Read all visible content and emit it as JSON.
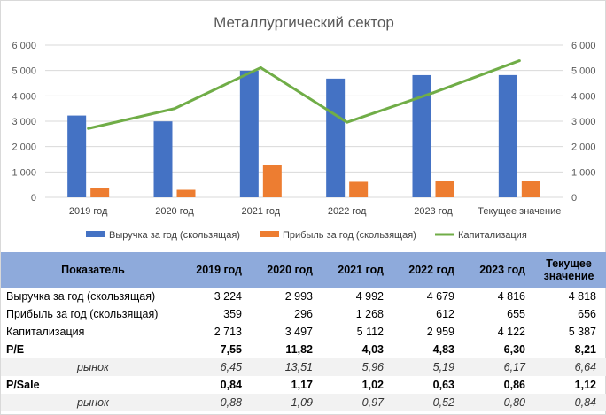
{
  "chart_data": {
    "type": "bar+line",
    "title": "Металлургический сектор",
    "categories": [
      "2019 год",
      "2020 год",
      "2021 год",
      "2022 год",
      "2023 год",
      "Текущее значение"
    ],
    "series": [
      {
        "name": "Выручка за год (скользящая)",
        "kind": "bar",
        "color": "#4472c4",
        "values": [
          3224,
          2993,
          4992,
          4679,
          4816,
          4818
        ]
      },
      {
        "name": "Прибыль за год (скользящая)",
        "kind": "bar",
        "color": "#ed7d31",
        "values": [
          359,
          296,
          1268,
          612,
          655,
          656
        ]
      },
      {
        "name": "Капитализация",
        "kind": "line",
        "color": "#70ad47",
        "axis": "secondary",
        "values": [
          2713,
          3497,
          5112,
          2959,
          4122,
          5387
        ]
      }
    ],
    "ylim": [
      0,
      6000
    ],
    "y2lim": [
      0,
      6000
    ],
    "y_ticks": [
      "0",
      "1 000",
      "2 000",
      "3 000",
      "4 000",
      "5 000",
      "6 000"
    ],
    "y2_ticks": [
      "0",
      "1 000",
      "2 000",
      "3 000",
      "4 000",
      "5 000",
      "6 000"
    ],
    "legend_position": "bottom"
  },
  "table": {
    "headers": [
      "Показатель",
      "2019 год",
      "2020 год",
      "2021 год",
      "2022 год",
      "2023 год",
      "Текущее значение"
    ],
    "rows": [
      {
        "style": "normal",
        "cells": [
          "Выручка за год (скользящая)",
          "3 224",
          "2 993",
          "4 992",
          "4 679",
          "4 816",
          "4 818"
        ]
      },
      {
        "style": "normal",
        "cells": [
          "Прибыль за год (скользящая)",
          "359",
          "296",
          "1 268",
          "612",
          "655",
          "656"
        ]
      },
      {
        "style": "normal",
        "cells": [
          "Капитализация",
          "2 713",
          "3 497",
          "5 112",
          "2 959",
          "4 122",
          "5 387"
        ]
      },
      {
        "style": "bold",
        "cells": [
          "P/E",
          "7,55",
          "11,82",
          "4,03",
          "4,83",
          "6,30",
          "8,21"
        ]
      },
      {
        "style": "market",
        "cells": [
          "рынок",
          "6,45",
          "13,51",
          "5,96",
          "5,19",
          "6,17",
          "6,64"
        ]
      },
      {
        "style": "bold",
        "cells": [
          "P/Sale",
          "0,84",
          "1,17",
          "1,02",
          "0,63",
          "0,86",
          "1,12"
        ]
      },
      {
        "style": "market",
        "cells": [
          "рынок",
          "0,88",
          "1,09",
          "0,97",
          "0,52",
          "0,80",
          "0,84"
        ]
      }
    ]
  },
  "colors": {
    "header_bg": "#8eaadb",
    "market_row_bg": "#f2f2f2",
    "grid": "#d9d9d9"
  }
}
